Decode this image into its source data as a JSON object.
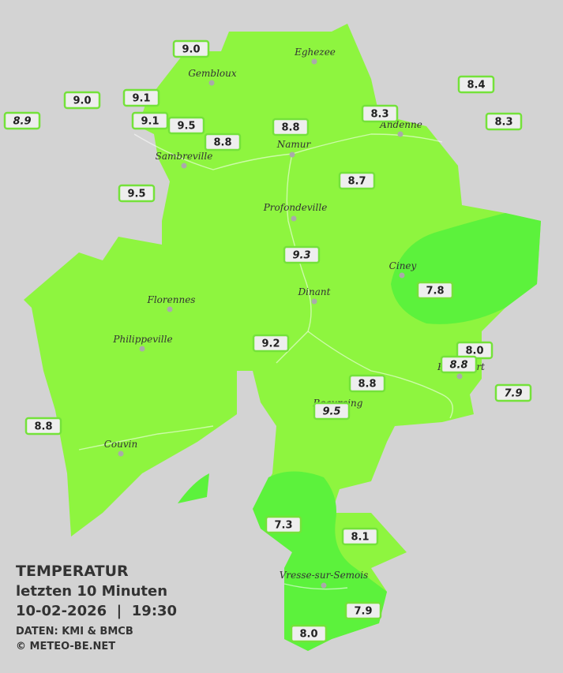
{
  "header": {
    "title": "TEMPERATUR",
    "subtitle": "letzten 10 Minuten",
    "datetime": "10-02-2026  |  19:30",
    "source": "DATEN: KMI & BMCB",
    "credit": "© METEO-BE.NET"
  },
  "cities": [
    "Eghezee",
    "Gembloux",
    "Andenne",
    "Namur",
    "Sambreville",
    "Profondeville",
    "Ciney",
    "Dinant",
    "Florennes",
    "Philippeville",
    "Rochefort",
    "Beauraing",
    "Couvin",
    "Vresse-sur-Semois"
  ],
  "stations": [
    "9.0",
    "9.0",
    "8.9",
    "9.1",
    "9.1",
    "9.5",
    "8.8",
    "8.8",
    "8.3",
    "8.4",
    "8.3",
    "9.5",
    "8.7",
    "9.3",
    "7.8",
    "9.2",
    "8.0",
    "8.8",
    "8.8",
    "7.9",
    "9.5",
    "8.8",
    "7.3",
    "8.1",
    "7.9",
    "8.0"
  ]
}
